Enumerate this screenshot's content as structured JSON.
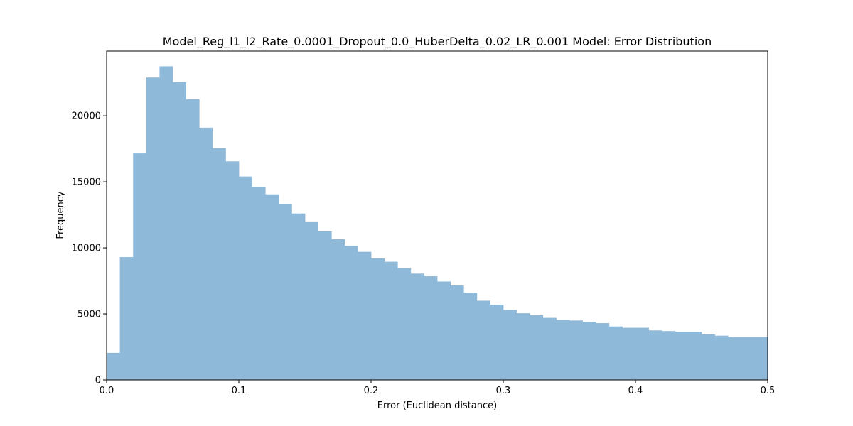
{
  "chart_data": {
    "type": "bar",
    "title": "Model_Reg_l1_l2_Rate_0.0001_Dropout_0.0_HuberDelta_0.02_LR_0.001 Model: Error Distribution",
    "xlabel": "Error (Euclidean distance)",
    "ylabel": "Frequency",
    "xlim": [
      0,
      0.5
    ],
    "ylim": [
      0,
      24900
    ],
    "x_ticks": [
      0.0,
      0.1,
      0.2,
      0.3,
      0.4,
      0.5
    ],
    "x_tick_labels": [
      "0.0",
      "0.1",
      "0.2",
      "0.3",
      "0.4",
      "0.5"
    ],
    "y_ticks": [
      0,
      5000,
      10000,
      15000,
      20000
    ],
    "y_tick_labels": [
      "0",
      "5000",
      "10000",
      "15000",
      "20000"
    ],
    "grid": false,
    "bar_color": "#8fb9d9",
    "bin_width": 0.01,
    "bin_starts": [
      0.0,
      0.01,
      0.02,
      0.03,
      0.04,
      0.05,
      0.06,
      0.07,
      0.08,
      0.09,
      0.1,
      0.11,
      0.12,
      0.13,
      0.14,
      0.15,
      0.16,
      0.17,
      0.18,
      0.19,
      0.2,
      0.21,
      0.22,
      0.23,
      0.24,
      0.25,
      0.26,
      0.27,
      0.28,
      0.29,
      0.3,
      0.31,
      0.32,
      0.33,
      0.34,
      0.35,
      0.36,
      0.37,
      0.38,
      0.39,
      0.4,
      0.41,
      0.42,
      0.43,
      0.44,
      0.45,
      0.46,
      0.47,
      0.48,
      0.49
    ],
    "values": [
      2050,
      9300,
      17150,
      22900,
      23750,
      22550,
      21250,
      19100,
      17550,
      16550,
      15400,
      14600,
      14050,
      13300,
      12600,
      12000,
      11250,
      10650,
      10150,
      9700,
      9200,
      8950,
      8450,
      8050,
      7850,
      7450,
      7150,
      6600,
      6000,
      5700,
      5300,
      5050,
      4900,
      4700,
      4550,
      4500,
      4400,
      4300,
      4050,
      3950,
      3950,
      3750,
      3700,
      3650,
      3650,
      3450,
      3350,
      3250,
      3250,
      3250
    ]
  }
}
